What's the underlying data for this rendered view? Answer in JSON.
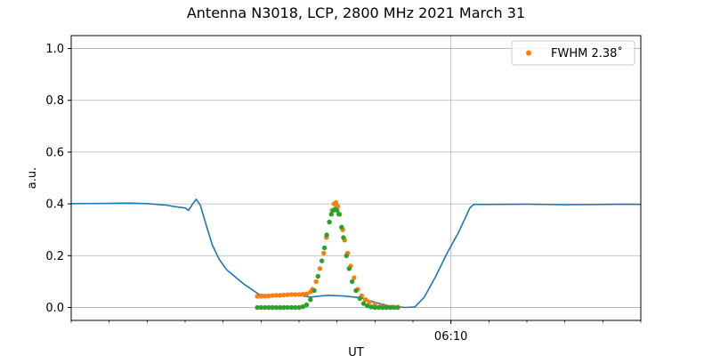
{
  "chart_data": {
    "type": "scatter",
    "title": "Antenna N3018, LCP, 2800 MHz 2021 March 31",
    "xlabel": "UT",
    "ylabel": "a.u.",
    "ylim": [
      -0.05,
      1.05
    ],
    "y_ticks": [
      0.0,
      0.2,
      0.4,
      0.6,
      0.8,
      1.0
    ],
    "y_tick_labels": [
      "0.0",
      "0.2",
      "0.4",
      "0.6",
      "0.8",
      "1.0"
    ],
    "xlim_minutes": [
      0,
      15
    ],
    "x_major_ticks": [
      {
        "minute": 10,
        "label": "06:10"
      }
    ],
    "x_minor_ticks_minutes": [
      0,
      1,
      2,
      3,
      4,
      5,
      6,
      7,
      8,
      9,
      11,
      12,
      13,
      14,
      15
    ],
    "grid": true,
    "legend_position": "top-right",
    "series": [
      {
        "kind": "line",
        "color": "#1f77b4",
        "points": [
          [
            0.0,
            0.401
          ],
          [
            1.0,
            0.402
          ],
          [
            1.5,
            0.403
          ],
          [
            2.0,
            0.401
          ],
          [
            2.5,
            0.395
          ],
          [
            2.7,
            0.39
          ],
          [
            3.0,
            0.384
          ],
          [
            3.09,
            0.375
          ],
          [
            3.2,
            0.4
          ],
          [
            3.29,
            0.418
          ],
          [
            3.4,
            0.395
          ],
          [
            3.55,
            0.32
          ],
          [
            3.72,
            0.24
          ],
          [
            3.9,
            0.185
          ],
          [
            4.1,
            0.145
          ],
          [
            4.3,
            0.12
          ],
          [
            4.55,
            0.09
          ],
          [
            4.75,
            0.07
          ],
          [
            4.85,
            0.06
          ],
          [
            4.95,
            0.05
          ],
          [
            5.3,
            0.048
          ],
          [
            5.6,
            0.048
          ],
          [
            5.9,
            0.049
          ],
          [
            6.3,
            0.04
          ],
          [
            6.6,
            0.045
          ],
          [
            6.8,
            0.047
          ],
          [
            7.2,
            0.044
          ],
          [
            7.6,
            0.038
          ],
          [
            8.0,
            0.02
          ],
          [
            8.4,
            0.005
          ],
          [
            8.8,
            0.0
          ],
          [
            9.05,
            0.002
          ],
          [
            9.3,
            0.04
          ],
          [
            9.6,
            0.12
          ],
          [
            9.9,
            0.21
          ],
          [
            10.2,
            0.29
          ],
          [
            10.5,
            0.385
          ],
          [
            10.6,
            0.398
          ],
          [
            11.0,
            0.398
          ],
          [
            12.0,
            0.399
          ],
          [
            13.0,
            0.397
          ],
          [
            14.0,
            0.398
          ],
          [
            14.6,
            0.399
          ],
          [
            15.0,
            0.398
          ]
        ]
      },
      {
        "kind": "scatter",
        "name": "FWHM 2.38$^\\circ$",
        "legend_label": "FWHM 2.38˚",
        "color": "#ff7f0e",
        "points": [
          [
            4.9,
            0.043
          ],
          [
            5.0,
            0.043
          ],
          [
            5.1,
            0.044
          ],
          [
            5.2,
            0.045
          ],
          [
            5.3,
            0.046
          ],
          [
            5.4,
            0.047
          ],
          [
            5.5,
            0.047
          ],
          [
            5.6,
            0.048
          ],
          [
            5.7,
            0.049
          ],
          [
            5.8,
            0.05
          ],
          [
            5.9,
            0.05
          ],
          [
            6.0,
            0.05
          ],
          [
            6.1,
            0.051
          ],
          [
            6.2,
            0.052
          ],
          [
            6.3,
            0.06
          ],
          [
            6.35,
            0.07
          ],
          [
            6.45,
            0.1
          ],
          [
            6.55,
            0.15
          ],
          [
            6.65,
            0.21
          ],
          [
            6.72,
            0.27
          ],
          [
            6.8,
            0.33
          ],
          [
            6.87,
            0.375
          ],
          [
            6.92,
            0.4
          ],
          [
            6.97,
            0.405
          ],
          [
            7.02,
            0.39
          ],
          [
            7.07,
            0.36
          ],
          [
            7.15,
            0.3
          ],
          [
            7.2,
            0.26
          ],
          [
            7.28,
            0.21
          ],
          [
            7.36,
            0.16
          ],
          [
            7.45,
            0.115
          ],
          [
            7.55,
            0.07
          ],
          [
            7.65,
            0.045
          ],
          [
            7.75,
            0.03
          ],
          [
            7.85,
            0.02
          ],
          [
            8.0,
            0.012
          ],
          [
            8.15,
            0.006
          ],
          [
            8.3,
            0.003
          ],
          [
            8.45,
            0.002
          ],
          [
            8.6,
            0.001
          ]
        ]
      },
      {
        "kind": "scatter",
        "color": "#2ca02c",
        "points": [
          [
            4.9,
            0.0
          ],
          [
            5.0,
            0.0
          ],
          [
            5.1,
            0.0
          ],
          [
            5.2,
            0.0
          ],
          [
            5.3,
            0.0
          ],
          [
            5.4,
            0.0
          ],
          [
            5.5,
            0.0
          ],
          [
            5.6,
            0.0
          ],
          [
            5.7,
            0.0
          ],
          [
            5.8,
            0.0
          ],
          [
            5.9,
            0.0
          ],
          [
            6.0,
            0.0
          ],
          [
            6.1,
            0.003
          ],
          [
            6.2,
            0.01
          ],
          [
            6.3,
            0.03
          ],
          [
            6.4,
            0.065
          ],
          [
            6.5,
            0.12
          ],
          [
            6.6,
            0.18
          ],
          [
            6.67,
            0.23
          ],
          [
            6.73,
            0.28
          ],
          [
            6.8,
            0.33
          ],
          [
            6.85,
            0.36
          ],
          [
            6.9,
            0.375
          ],
          [
            6.95,
            0.38
          ],
          [
            7.0,
            0.375
          ],
          [
            7.05,
            0.36
          ],
          [
            7.12,
            0.31
          ],
          [
            7.17,
            0.27
          ],
          [
            7.25,
            0.2
          ],
          [
            7.32,
            0.15
          ],
          [
            7.4,
            0.1
          ],
          [
            7.5,
            0.065
          ],
          [
            7.6,
            0.035
          ],
          [
            7.7,
            0.015
          ],
          [
            7.8,
            0.006
          ],
          [
            7.9,
            0.002
          ],
          [
            8.0,
            0.0
          ],
          [
            8.1,
            0.0
          ],
          [
            8.2,
            0.0
          ],
          [
            8.3,
            0.0
          ],
          [
            8.4,
            0.0
          ],
          [
            8.5,
            0.0
          ],
          [
            8.6,
            0.0
          ]
        ]
      }
    ]
  }
}
